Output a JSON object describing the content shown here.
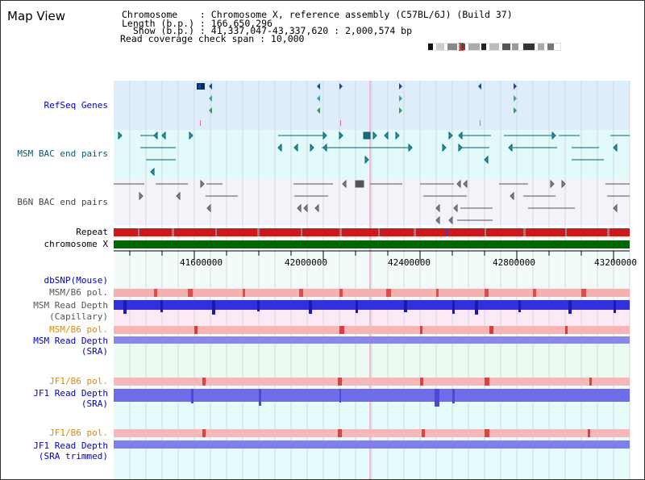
{
  "view_title": "Map View",
  "info": {
    "chromosome_line": "Chromosome    : Chromosome X, reference assembly (C57BL/6J) (Build 37)",
    "length_line": "Length (b.p.) : 166,650,296",
    "show_line": "  Show (b.p.) : 41,337,047-43,337,620 : 2,000,574 bp",
    "coverage_line": "Read coverage check span : 10,000"
  },
  "tracks": {
    "refseq": "RefSeq Genes",
    "msm_bac": "MSM BAC end pairs",
    "b6n_bac": "B6N BAC end pairs",
    "repeat": "Repeat",
    "chromosome": "chromosome X",
    "dbsnp": "dbSNP(Mouse)",
    "msm_b6_pol_1": "MSM/B6 pol.",
    "msm_read_depth_cap_1": "MSM Read Depth",
    "msm_read_depth_cap_2": "(Capillary)",
    "msm_b6_pol_2": "MSM/B6 pol.",
    "msm_read_depth_sra_1": "MSM Read Depth",
    "msm_read_depth_sra_2": "(SRA)",
    "jf1_b6_pol_1": "JF1/B6 pol.",
    "jf1_read_depth_sra_1": "JF1 Read Depth",
    "jf1_read_depth_sra_2": "(SRA)",
    "jf1_b6_pol_2": "JF1/B6 pol.",
    "jf1_read_depth_trim_1": "JF1 Read Depth",
    "jf1_read_depth_trim_2": "(SRA trimmed)"
  },
  "axis": {
    "ticks": [
      "41600000",
      "42000000",
      "42400000",
      "42800000",
      "43200000"
    ]
  },
  "colors": {
    "refseq_bg": "#ddeefa",
    "msm_bg": "#e2fafa",
    "b6n_bg": "#f3f3fa",
    "refseq_label": "#0000cc",
    "msm_label": "#006070",
    "b6n_label": "#444444",
    "orange_label": "#e08a00",
    "blue_label": "#0000cc",
    "gray_label": "#555555",
    "chromosome_green": "#006600"
  }
}
